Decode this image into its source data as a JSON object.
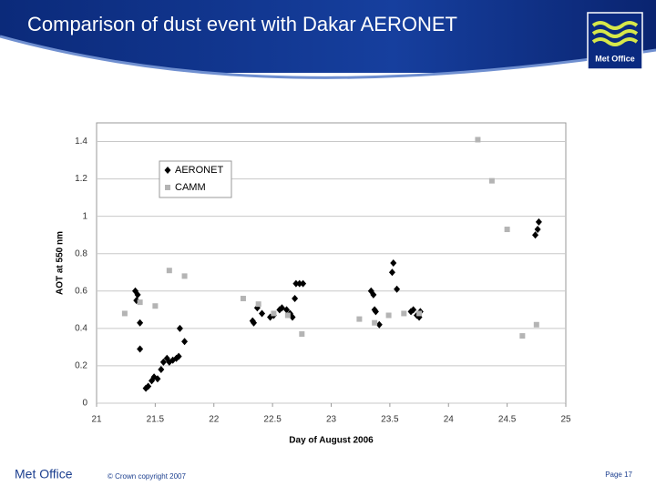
{
  "slide": {
    "title": "Comparison of dust event with Dakar AERONET",
    "logo_text": "Met Office",
    "footer_left": "Met Office",
    "copyright": "© Crown copyright 2007",
    "page": "Page 17"
  },
  "chart_data": {
    "type": "scatter",
    "x_label": "Day of August 2006",
    "y_label": "AOT at 550 nm",
    "xlim": [
      21,
      25
    ],
    "xticks": [
      21,
      21.5,
      22,
      22.5,
      23,
      23.5,
      24,
      24.5,
      25
    ],
    "ylim": [
      0,
      1.5
    ],
    "yticks": [
      0,
      0.2,
      0.4,
      0.6,
      0.8,
      1,
      1.2,
      1.4
    ],
    "grid": true,
    "legend_position": "upper left",
    "series": [
      {
        "name": "AERONET",
        "color": "#000000",
        "marker": "diamond",
        "x": [
          21.33,
          21.35,
          21.34,
          21.37,
          21.37,
          21.42,
          21.44,
          21.47,
          21.49,
          21.52,
          21.55,
          21.57,
          21.6,
          21.62,
          21.65,
          21.68,
          21.7,
          21.71,
          21.75,
          22.34,
          22.33,
          22.37,
          22.41,
          22.48,
          22.51,
          22.56,
          22.58,
          22.62,
          22.65,
          22.67,
          22.69,
          22.7,
          22.73,
          22.76,
          23.34,
          23.36,
          23.37,
          23.38,
          23.41,
          23.52,
          23.53,
          23.56,
          23.68,
          23.7,
          23.73,
          23.75,
          23.76,
          24.74,
          24.76,
          24.77
        ],
        "values": [
          0.6,
          0.58,
          0.55,
          0.43,
          0.29,
          0.08,
          0.09,
          0.12,
          0.14,
          0.13,
          0.18,
          0.22,
          0.24,
          0.22,
          0.23,
          0.24,
          0.25,
          0.4,
          0.33,
          0.43,
          0.44,
          0.51,
          0.48,
          0.46,
          0.47,
          0.5,
          0.51,
          0.5,
          0.48,
          0.46,
          0.56,
          0.64,
          0.64,
          0.64,
          0.6,
          0.58,
          0.5,
          0.49,
          0.42,
          0.7,
          0.75,
          0.61,
          0.49,
          0.5,
          0.47,
          0.46,
          0.49,
          0.9,
          0.93,
          0.97
        ]
      },
      {
        "name": "CAMM",
        "color": "#b4b4b4",
        "marker": "square",
        "x": [
          21.24,
          21.37,
          21.5,
          21.62,
          21.75,
          22.25,
          22.38,
          22.51,
          22.63,
          22.75,
          23.24,
          23.37,
          23.49,
          23.62,
          23.75,
          24.25,
          24.37,
          24.5,
          24.63,
          24.75
        ],
        "values": [
          0.48,
          0.54,
          0.52,
          0.71,
          0.68,
          0.56,
          0.53,
          0.48,
          0.47,
          0.37,
          0.45,
          0.43,
          0.47,
          0.48,
          0.48,
          1.41,
          1.19,
          0.93,
          0.36,
          0.42
        ]
      }
    ]
  }
}
